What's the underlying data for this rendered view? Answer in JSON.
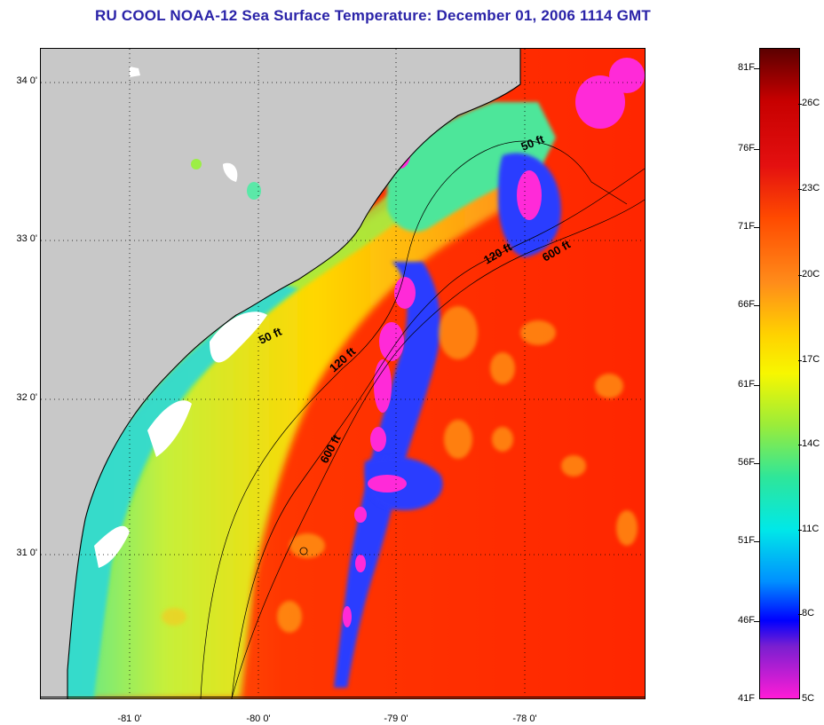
{
  "title": "RU COOL  NOAA-12  Sea Surface Temperature:  December 01, 2006 1114 GMT",
  "latitude_labels": [
    "34 0'",
    "33 0'",
    "32 0'",
    "31 0'"
  ],
  "longitude_labels": [
    "-81 0'",
    "-80 0'",
    "-79 0'",
    "-78 0'"
  ],
  "contour_labels": [
    "50 ft",
    "120 ft",
    "600 ft",
    "50 ft",
    "120 ft",
    "600 ft"
  ],
  "colorbar": {
    "fahrenheit": [
      "81F",
      "76F",
      "71F",
      "66F",
      "61F",
      "56F",
      "51F",
      "46F",
      "41F"
    ],
    "celsius": [
      "26C",
      "23C",
      "20C",
      "17C",
      "14C",
      "11C",
      "8C",
      "5C"
    ]
  },
  "colors": {
    "title": "#2a23a8",
    "land": "#c8c8c8",
    "cloud": "#ffffff",
    "warm": "#ff3a00",
    "cold": "#ff1cd6"
  }
}
